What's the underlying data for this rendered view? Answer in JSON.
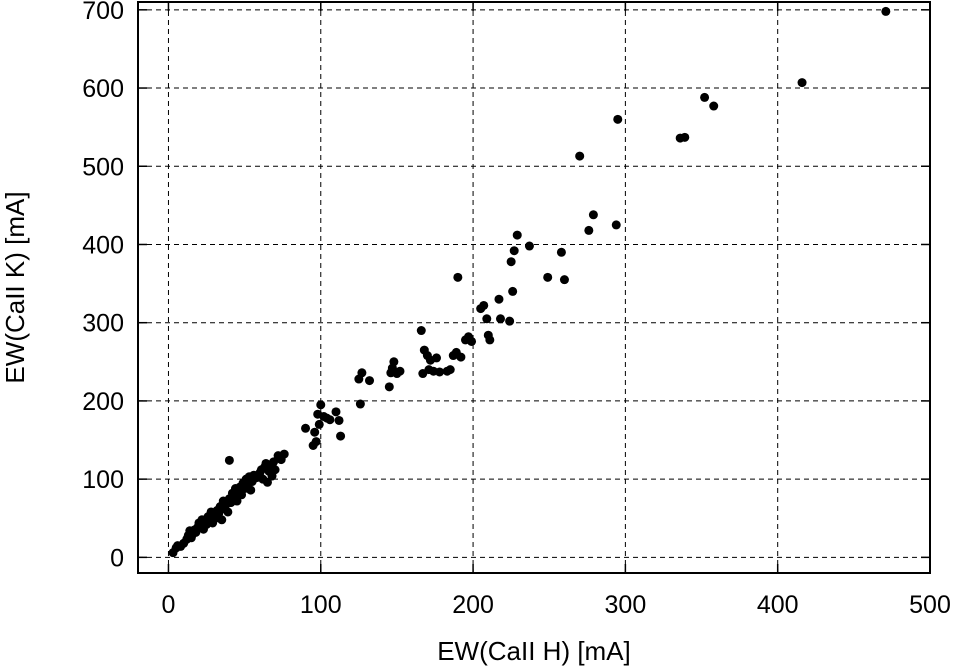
{
  "chart_data": {
    "type": "scatter",
    "title": "",
    "xlabel": "EW(CaII H) [mA]",
    "ylabel": "EW(CaII K) [mA]",
    "xlim": [
      -20,
      500
    ],
    "ylim": [
      -20,
      710
    ],
    "xticks": [
      0,
      100,
      200,
      300,
      400,
      500
    ],
    "yticks": [
      0,
      100,
      200,
      300,
      400,
      500,
      600,
      700
    ],
    "grid": true,
    "grid_style": "dashed",
    "marker_color": "#000000",
    "series": [
      {
        "points": [
          [
            3,
            6
          ],
          [
            5,
            12
          ],
          [
            6,
            15
          ],
          [
            8,
            14
          ],
          [
            10,
            18
          ],
          [
            12,
            23
          ],
          [
            13,
            28
          ],
          [
            14,
            34
          ],
          [
            15,
            25
          ],
          [
            16,
            30
          ],
          [
            17,
            35
          ],
          [
            18,
            32
          ],
          [
            19,
            38
          ],
          [
            20,
            44
          ],
          [
            21,
            40
          ],
          [
            22,
            48
          ],
          [
            23,
            36
          ],
          [
            24,
            45
          ],
          [
            25,
            42
          ],
          [
            26,
            52
          ],
          [
            27,
            47
          ],
          [
            28,
            58
          ],
          [
            29,
            44
          ],
          [
            30,
            55
          ],
          [
            31,
            50
          ],
          [
            32,
            60
          ],
          [
            33,
            56
          ],
          [
            34,
            65
          ],
          [
            35,
            48
          ],
          [
            36,
            72
          ],
          [
            37,
            62
          ],
          [
            38,
            68
          ],
          [
            39,
            58
          ],
          [
            40,
            75
          ],
          [
            41,
            70
          ],
          [
            42,
            82
          ],
          [
            43,
            78
          ],
          [
            44,
            88
          ],
          [
            45,
            72
          ],
          [
            46,
            84
          ],
          [
            47,
            90
          ],
          [
            48,
            80
          ],
          [
            49,
            95
          ],
          [
            50,
            88
          ],
          [
            51,
            100
          ],
          [
            52,
            92
          ],
          [
            53,
            103
          ],
          [
            54,
            86
          ],
          [
            55,
            97
          ],
          [
            56,
            105
          ],
          [
            58,
            102
          ],
          [
            60,
            108
          ],
          [
            61,
            112
          ],
          [
            62,
            100
          ],
          [
            63,
            115
          ],
          [
            64,
            120
          ],
          [
            65,
            96
          ],
          [
            66,
            110
          ],
          [
            67,
            118
          ],
          [
            68,
            104
          ],
          [
            69,
            122
          ],
          [
            70,
            112
          ],
          [
            72,
            130
          ],
          [
            74,
            125
          ],
          [
            76,
            132
          ],
          [
            40,
            124
          ],
          [
            90,
            165
          ],
          [
            95,
            143
          ],
          [
            96,
            160
          ],
          [
            97,
            148
          ],
          [
            98,
            183
          ],
          [
            99,
            170
          ],
          [
            100,
            195
          ],
          [
            102,
            180
          ],
          [
            104,
            178
          ],
          [
            106,
            176
          ],
          [
            110,
            186
          ],
          [
            112,
            175
          ],
          [
            113,
            155
          ],
          [
            125,
            228
          ],
          [
            126,
            196
          ],
          [
            127,
            236
          ],
          [
            132,
            226
          ],
          [
            145,
            218
          ],
          [
            146,
            236
          ],
          [
            147,
            242
          ],
          [
            148,
            250
          ],
          [
            150,
            235
          ],
          [
            152,
            238
          ],
          [
            166,
            290
          ],
          [
            167,
            235
          ],
          [
            168,
            265
          ],
          [
            170,
            258
          ],
          [
            171,
            240
          ],
          [
            172,
            252
          ],
          [
            174,
            238
          ],
          [
            176,
            255
          ],
          [
            178,
            237
          ],
          [
            183,
            238
          ],
          [
            185,
            240
          ],
          [
            187,
            258
          ],
          [
            189,
            262
          ],
          [
            190,
            358
          ],
          [
            192,
            256
          ],
          [
            195,
            278
          ],
          [
            197,
            282
          ],
          [
            199,
            276
          ],
          [
            205,
            318
          ],
          [
            207,
            322
          ],
          [
            209,
            305
          ],
          [
            210,
            284
          ],
          [
            211,
            278
          ],
          [
            217,
            330
          ],
          [
            218,
            305
          ],
          [
            224,
            302
          ],
          [
            225,
            378
          ],
          [
            226,
            340
          ],
          [
            227,
            392
          ],
          [
            229,
            412
          ],
          [
            237,
            398
          ],
          [
            249,
            358
          ],
          [
            258,
            390
          ],
          [
            260,
            355
          ],
          [
            270,
            513
          ],
          [
            276,
            418
          ],
          [
            279,
            438
          ],
          [
            294,
            425
          ],
          [
            295,
            560
          ],
          [
            336,
            536
          ],
          [
            339,
            537
          ],
          [
            352,
            588
          ],
          [
            358,
            577
          ],
          [
            416,
            607
          ],
          [
            471,
            698
          ]
        ]
      }
    ]
  }
}
